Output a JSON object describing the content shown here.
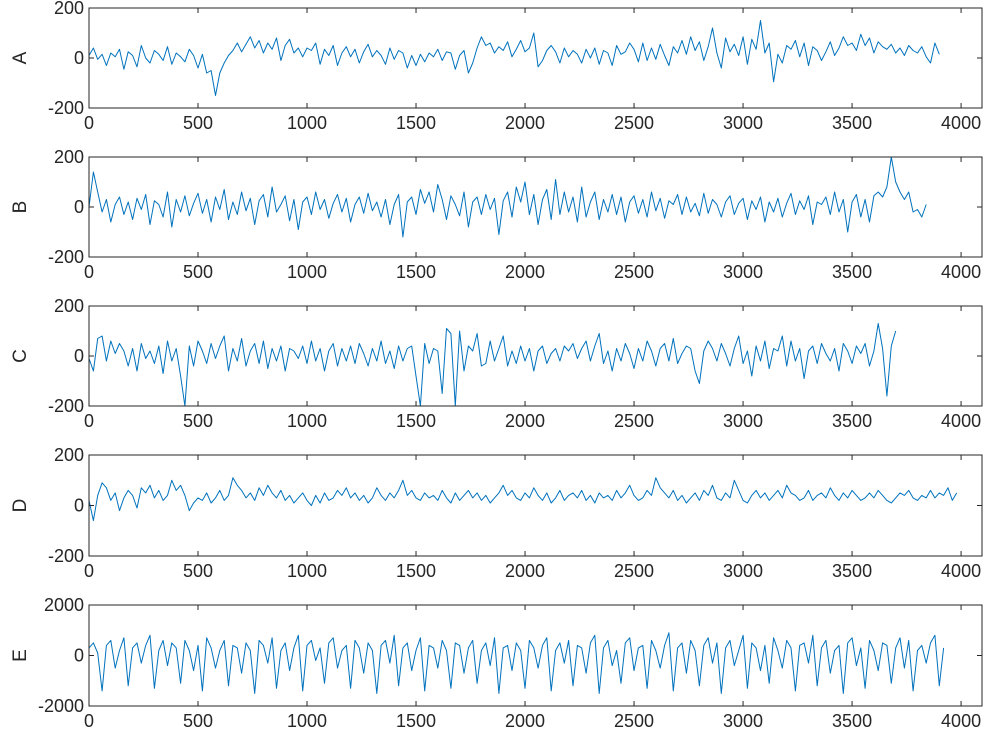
{
  "colors": {
    "line": "#0072BD",
    "axis": "#262626",
    "background": "#ffffff"
  },
  "chart_data": [
    {
      "type": "line",
      "ylabel": "A",
      "xlim": [
        0,
        4096
      ],
      "ylim": [
        -200,
        200
      ],
      "xticks": [
        0,
        500,
        1000,
        1500,
        2000,
        2500,
        3000,
        3500,
        4000
      ],
      "yticks": [
        -200,
        0,
        200
      ],
      "xtick_labels": [
        "0",
        "500",
        "1000",
        "1500",
        "2000",
        "2500",
        "3000",
        "3500",
        "4000"
      ],
      "ytick_labels": [
        "-200",
        "0",
        "200"
      ],
      "grid": false,
      "series": [
        {
          "x_step": 20,
          "y": [
            10,
            40,
            -5,
            15,
            -30,
            20,
            5,
            35,
            -45,
            25,
            10,
            -35,
            50,
            0,
            -20,
            30,
            15,
            -10,
            45,
            -25,
            20,
            5,
            -15,
            35,
            10,
            -40,
            15,
            -60,
            -50,
            -150,
            -60,
            -20,
            10,
            30,
            60,
            25,
            55,
            85,
            40,
            70,
            20,
            60,
            35,
            80,
            -10,
            50,
            75,
            20,
            40,
            5,
            40,
            30,
            60,
            -25,
            35,
            10,
            50,
            -30,
            20,
            45,
            5,
            35,
            -20,
            25,
            55,
            5,
            30,
            10,
            -25,
            40,
            -5,
            30,
            20,
            -40,
            10,
            -30,
            15,
            -15,
            20,
            5,
            35,
            -10,
            25,
            20,
            -45,
            10,
            30,
            -60,
            -20,
            40,
            85,
            50,
            60,
            20,
            45,
            30,
            65,
            5,
            35,
            70,
            25,
            40,
            100,
            -35,
            -10,
            30,
            50,
            25,
            -20,
            40,
            5,
            30,
            15,
            -20,
            35,
            0,
            40,
            -25,
            30,
            20,
            -30,
            50,
            15,
            25,
            60,
            35,
            -15,
            60,
            -10,
            40,
            -5,
            55,
            10,
            -30,
            45,
            20,
            70,
            15,
            85,
            30,
            65,
            -10,
            45,
            120,
            20,
            -40,
            80,
            25,
            55,
            10,
            85,
            -25,
            75,
            35,
            150,
            20,
            60,
            -95,
            15,
            -20,
            50,
            35,
            70,
            5,
            60,
            -30,
            45,
            30,
            -10,
            25,
            65,
            10,
            40,
            85,
            50,
            60,
            30,
            95,
            50,
            80,
            20,
            65,
            45,
            35,
            55,
            20,
            40,
            10,
            50,
            30,
            20,
            45,
            5,
            -20,
            60,
            15
          ]
        }
      ]
    },
    {
      "type": "line",
      "ylabel": "B",
      "xlim": [
        0,
        4096
      ],
      "ylim": [
        -200,
        200
      ],
      "xticks": [
        0,
        500,
        1000,
        1500,
        2000,
        2500,
        3000,
        3500,
        4000
      ],
      "yticks": [
        -200,
        0,
        200
      ],
      "xtick_labels": [
        "0",
        "500",
        "1000",
        "1500",
        "2000",
        "2500",
        "3000",
        "3500",
        "4000"
      ],
      "ytick_labels": [
        "-200",
        "0",
        "200"
      ],
      "grid": false,
      "series": [
        {
          "x_step": 20,
          "y": [
            0,
            140,
            60,
            -20,
            30,
            -60,
            10,
            40,
            -30,
            20,
            -50,
            35,
            -10,
            50,
            -70,
            25,
            10,
            -40,
            60,
            -80,
            30,
            -20,
            45,
            -35,
            15,
            55,
            -25,
            30,
            -60,
            40,
            -10,
            70,
            -50,
            20,
            -30,
            60,
            -15,
            35,
            -70,
            25,
            50,
            -40,
            80,
            -20,
            10,
            45,
            -55,
            30,
            -90,
            20,
            40,
            -30,
            60,
            -10,
            30,
            -45,
            15,
            50,
            -20,
            35,
            -60,
            10,
            40,
            -25,
            55,
            -15,
            20,
            -40,
            30,
            -70,
            10,
            50,
            -120,
            20,
            40,
            -30,
            70,
            15,
            60,
            -20,
            90,
            30,
            -50,
            45,
            10,
            -35,
            60,
            -80,
            20,
            40,
            -30,
            50,
            -10,
            35,
            -110,
            25,
            60,
            -40,
            80,
            20,
            100,
            -30,
            50,
            -70,
            30,
            70,
            -50,
            110,
            -30,
            60,
            -20,
            40,
            -60,
            80,
            -40,
            20,
            60,
            -50,
            30,
            -20,
            50,
            -30,
            40,
            -60,
            20,
            45,
            -25,
            30,
            -40,
            60,
            -15,
            35,
            -45,
            25,
            10,
            50,
            -30,
            40,
            -20,
            15,
            -35,
            55,
            -25,
            30,
            10,
            -40,
            20,
            45,
            -30,
            15,
            35,
            -50,
            25,
            -10,
            40,
            -60,
            20,
            -20,
            35,
            -40,
            15,
            55,
            -30,
            25,
            -10,
            45,
            -70,
            20,
            10,
            40,
            -30,
            60,
            -20,
            30,
            -100,
            20,
            50,
            -40,
            30,
            -60,
            45,
            60,
            40,
            80,
            200,
            100,
            60,
            30,
            60,
            -20,
            -10,
            -40,
            10
          ]
        }
      ]
    },
    {
      "type": "line",
      "ylabel": "C",
      "xlim": [
        0,
        4096
      ],
      "ylim": [
        -200,
        200
      ],
      "xticks": [
        0,
        500,
        1000,
        1500,
        2000,
        2500,
        3000,
        3500,
        4000
      ],
      "yticks": [
        -200,
        0,
        200
      ],
      "xtick_labels": [
        "0",
        "500",
        "1000",
        "1500",
        "2000",
        "2500",
        "3000",
        "3500",
        "4000"
      ],
      "ytick_labels": [
        "-200",
        "0",
        "200"
      ],
      "grid": false,
      "series": [
        {
          "x_step": 20,
          "y": [
            -10,
            -60,
            70,
            80,
            -20,
            60,
            10,
            50,
            20,
            -40,
            30,
            -60,
            50,
            -10,
            20,
            -30,
            40,
            -70,
            60,
            -20,
            30,
            -80,
            -200,
            40,
            -40,
            60,
            20,
            -30,
            50,
            -10,
            40,
            80,
            -60,
            30,
            -20,
            70,
            -40,
            20,
            50,
            -30,
            60,
            -50,
            30,
            -20,
            40,
            -60,
            30,
            20,
            -10,
            40,
            -30,
            60,
            -20,
            30,
            -60,
            20,
            50,
            -40,
            30,
            -20,
            40,
            -30,
            50,
            10,
            -40,
            30,
            -20,
            60,
            -30,
            20,
            -50,
            40,
            -20,
            30,
            40,
            -80,
            -200,
            50,
            -30,
            30,
            20,
            -150,
            110,
            90,
            -200,
            100,
            -60,
            40,
            20,
            90,
            -40,
            -30,
            60,
            -20,
            30,
            80,
            -40,
            20,
            -30,
            40,
            -20,
            30,
            -60,
            20,
            40,
            -30,
            10,
            30,
            -20,
            40,
            20,
            50,
            -10,
            30,
            60,
            -20,
            40,
            90,
            -30,
            20,
            -60,
            30,
            -20,
            50,
            10,
            -50,
            30,
            -20,
            60,
            20,
            -40,
            30,
            50,
            -20,
            70,
            -30,
            10,
            40,
            30,
            -60,
            -110,
            20,
            60,
            30,
            -20,
            50,
            10,
            -40,
            30,
            80,
            -30,
            20,
            -80,
            40,
            -20,
            60,
            -50,
            30,
            20,
            80,
            -40,
            60,
            -20,
            30,
            -90,
            20,
            40,
            -30,
            50,
            10,
            -20,
            30,
            -60,
            50,
            20,
            -30,
            40,
            10,
            50,
            -40,
            20,
            130,
            30,
            -160,
            40,
            100
          ]
        }
      ]
    },
    {
      "type": "line",
      "ylabel": "D",
      "xlim": [
        0,
        4096
      ],
      "ylim": [
        -200,
        200
      ],
      "xticks": [
        0,
        500,
        1000,
        1500,
        2000,
        2500,
        3000,
        3500,
        4000
      ],
      "yticks": [
        -200,
        0,
        200
      ],
      "xtick_labels": [
        "0",
        "500",
        "1000",
        "1500",
        "2000",
        "2500",
        "3000",
        "3500",
        "4000"
      ],
      "ytick_labels": [
        "-200",
        "0",
        "200"
      ],
      "grid": false,
      "series": [
        {
          "x_step": 20,
          "y": [
            20,
            -60,
            40,
            90,
            70,
            20,
            50,
            -20,
            30,
            60,
            40,
            -10,
            70,
            50,
            80,
            30,
            60,
            20,
            40,
            100,
            60,
            80,
            40,
            -20,
            10,
            30,
            20,
            50,
            10,
            30,
            60,
            20,
            40,
            110,
            80,
            60,
            30,
            50,
            20,
            70,
            40,
            80,
            50,
            30,
            60,
            20,
            40,
            10,
            30,
            50,
            20,
            0,
            40,
            10,
            50,
            20,
            30,
            60,
            40,
            70,
            30,
            50,
            20,
            40,
            10,
            30,
            70,
            40,
            20,
            50,
            30,
            60,
            100,
            40,
            60,
            30,
            20,
            50,
            30,
            40,
            20,
            60,
            30,
            10,
            50,
            20,
            40,
            60,
            30,
            50,
            20,
            40,
            10,
            30,
            50,
            80,
            40,
            60,
            30,
            20,
            50,
            30,
            70,
            40,
            20,
            50,
            10,
            30,
            60,
            20,
            40,
            50,
            30,
            60,
            20,
            40,
            10,
            50,
            30,
            40,
            20,
            60,
            30,
            50,
            80,
            40,
            20,
            30,
            60,
            40,
            110,
            70,
            50,
            30,
            60,
            20,
            40,
            10,
            30,
            50,
            20,
            60,
            40,
            80,
            30,
            20,
            50,
            30,
            100,
            60,
            20,
            10,
            40,
            60,
            30,
            50,
            20,
            40,
            60,
            30,
            80,
            50,
            40,
            20,
            30,
            60,
            20,
            40,
            50,
            30,
            70,
            40,
            20,
            50,
            30,
            60,
            40,
            20,
            30,
            50,
            30,
            60,
            40,
            20,
            10,
            30,
            50,
            40,
            60,
            30,
            20,
            40,
            30,
            60,
            30,
            50,
            40,
            70,
            20,
            50
          ]
        }
      ]
    },
    {
      "type": "line",
      "ylabel": "E",
      "xlim": [
        0,
        4096
      ],
      "ylim": [
        -2000,
        2000
      ],
      "xticks": [
        0,
        500,
        1000,
        1500,
        2000,
        2500,
        3000,
        3500,
        4000
      ],
      "yticks": [
        -2000,
        0,
        2000
      ],
      "xtick_labels": [
        "0",
        "500",
        "1000",
        "1500",
        "2000",
        "2500",
        "3000",
        "3500",
        "4000"
      ],
      "ytick_labels": [
        "-2000",
        "0",
        "2000"
      ],
      "grid": false,
      "series": [
        {
          "x_step": 20,
          "y": [
            300,
            500,
            100,
            -1400,
            400,
            600,
            -500,
            200,
            700,
            -1200,
            300,
            500,
            -300,
            400,
            800,
            -1300,
            200,
            600,
            -400,
            500,
            300,
            -1100,
            600,
            200,
            -600,
            400,
            -1400,
            700,
            300,
            -500,
            200,
            600,
            -1200,
            400,
            300,
            -700,
            500,
            200,
            -1500,
            600,
            400,
            -300,
            700,
            -1300,
            200,
            500,
            -600,
            300,
            800,
            -1400,
            400,
            600,
            -200,
            300,
            -1100,
            500,
            700,
            -500,
            200,
            400,
            -1300,
            600,
            300,
            -700,
            500,
            200,
            -1500,
            400,
            600,
            -300,
            800,
            -1200,
            300,
            500,
            -600,
            200,
            700,
            -1400,
            400,
            300,
            -500,
            600,
            200,
            -1300,
            500,
            400,
            -700,
            300,
            600,
            -1100,
            200,
            500,
            -400,
            700,
            -1500,
            300,
            400,
            -600,
            500,
            200,
            -1300,
            600,
            300,
            -500,
            400,
            700,
            -1400,
            200,
            500,
            -300,
            600,
            -1200,
            400,
            300,
            -700,
            500,
            800,
            -1500,
            300,
            600,
            -400,
            200,
            -1100,
            500,
            700,
            -600,
            300,
            400,
            -1300,
            600,
            200,
            -500,
            400,
            900,
            -1400,
            300,
            500,
            -700,
            600,
            200,
            -1200,
            400,
            700,
            -300,
            500,
            -1500,
            300,
            600,
            -400,
            200,
            800,
            -1300,
            500,
            300,
            -600,
            400,
            -1100,
            700,
            200,
            -500,
            600,
            300,
            -1400,
            400,
            500,
            -300,
            800,
            -1200,
            300,
            600,
            -700,
            200,
            400,
            -1500,
            500,
            700,
            -400,
            300,
            -1300,
            600,
            200,
            -600,
            500,
            400,
            -1100,
            300,
            700,
            -500,
            600,
            -1400,
            200,
            400,
            -300,
            500,
            800,
            -1200,
            300
          ]
        }
      ]
    }
  ]
}
